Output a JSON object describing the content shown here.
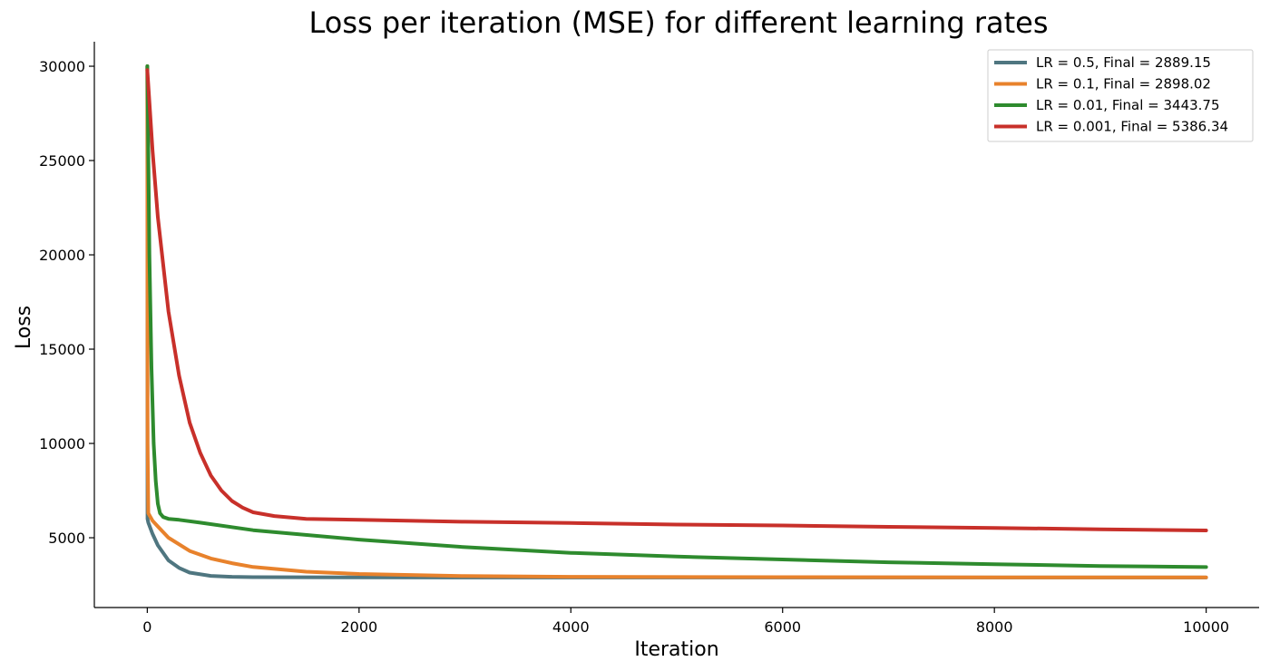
{
  "chart_data": {
    "type": "line",
    "title": "Loss per iteration (MSE) for different learning rates",
    "xlabel": "Iteration",
    "ylabel": "Loss",
    "xlim": [
      -500,
      10500
    ],
    "ylim": [
      1300,
      31300
    ],
    "xticks": [
      0,
      2000,
      4000,
      6000,
      8000,
      10000
    ],
    "yticks": [
      5000,
      10000,
      15000,
      20000,
      25000,
      30000
    ],
    "grid": false,
    "legend_position": "top-right",
    "series": [
      {
        "name": "LR = 0.5, Final = 2889.15",
        "color": "#4f7680",
        "x": [
          0,
          2,
          10,
          50,
          100,
          200,
          300,
          400,
          600,
          800,
          1000,
          2000,
          4000,
          6000,
          8000,
          10000
        ],
        "y": [
          30000,
          6000,
          5800,
          5200,
          4600,
          3800,
          3400,
          3150,
          2980,
          2930,
          2910,
          2895,
          2890,
          2890,
          2889,
          2889.15
        ]
      },
      {
        "name": "LR = 0.1, Final = 2898.02",
        "color": "#e8822c",
        "x": [
          0,
          3,
          10,
          50,
          100,
          200,
          400,
          600,
          800,
          1000,
          1500,
          2000,
          3000,
          4000,
          6000,
          8000,
          10000
        ],
        "y": [
          30000,
          10000,
          6300,
          5900,
          5600,
          5000,
          4300,
          3900,
          3650,
          3450,
          3200,
          3080,
          2970,
          2930,
          2910,
          2900,
          2898.02
        ]
      },
      {
        "name": "LR = 0.01, Final = 3443.75",
        "color": "#2e8b2e",
        "x": [
          0,
          5,
          20,
          40,
          60,
          80,
          100,
          120,
          150,
          200,
          300,
          500,
          1000,
          2000,
          3000,
          4000,
          5000,
          6000,
          7000,
          8000,
          9000,
          10000
        ],
        "y": [
          30000,
          28000,
          20000,
          14000,
          10000,
          8000,
          6800,
          6300,
          6100,
          6000,
          5950,
          5800,
          5400,
          4900,
          4500,
          4200,
          4000,
          3850,
          3700,
          3600,
          3500,
          3443.75
        ]
      },
      {
        "name": "LR = 0.001, Final = 5386.34",
        "color": "#c8302a",
        "x": [
          0,
          50,
          100,
          200,
          300,
          400,
          500,
          600,
          700,
          800,
          900,
          1000,
          1200,
          1500,
          2000,
          3000,
          4000,
          5000,
          6000,
          7000,
          8000,
          9000,
          10000
        ],
        "y": [
          29800,
          25500,
          22000,
          17000,
          13600,
          11100,
          9500,
          8300,
          7500,
          6950,
          6600,
          6350,
          6150,
          6000,
          5950,
          5850,
          5780,
          5700,
          5650,
          5580,
          5520,
          5450,
          5386.34
        ]
      }
    ]
  }
}
